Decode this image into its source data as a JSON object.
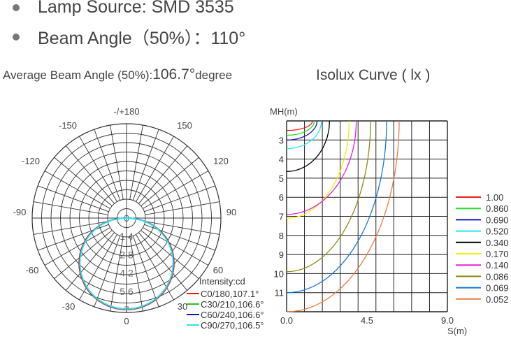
{
  "header": {
    "items": [
      {
        "text": "Lamp Source: SMD 3535"
      },
      {
        "text": "Beam Angle（50%）：110°"
      }
    ],
    "avg_label": "Average Beam Angle (50%):",
    "avg_value": "106.7°",
    "avg_unit": "degree",
    "isolux_title": "Isolux Curve ( lx )"
  },
  "chart_data": [
    {
      "type": "polar",
      "angle_labels": {
        "top": "-/+180",
        "150": "150",
        "-150": "-150",
        "120": "120",
        "-120": "-120",
        "90": "90",
        "-90": "-90",
        "60": "60",
        "-60": "-60",
        "30": "30",
        "-30": "-30",
        "bottom": "0"
      },
      "radial_ticks": [
        "0",
        "1.4",
        "2.8",
        "4.2",
        "5.6",
        "7"
      ],
      "radial_max": 7,
      "intensity_label": "Intensity:cd",
      "series": [
        {
          "name": "C0/180,107.1°",
          "color": "#e8201a",
          "peak": 7.0,
          "exponent": 0.9
        },
        {
          "name": "C30/210,106.6°",
          "color": "#22c322",
          "peak": 6.95,
          "exponent": 0.92
        },
        {
          "name": "C60/240,106.6°",
          "color": "#1010c0",
          "peak": 6.95,
          "exponent": 0.92
        },
        {
          "name": "C90/270,106.5°",
          "color": "#22e8f0",
          "peak": 6.95,
          "exponent": 0.93
        }
      ]
    },
    {
      "type": "isolux",
      "ylabel": "MH(m)",
      "xlabel": "S(m)",
      "x_ticks": [
        "0.0",
        "4.5",
        "9.0"
      ],
      "y_ticks": [
        "3",
        "4",
        "5",
        "6",
        "7",
        "8",
        "9",
        "10",
        "11"
      ],
      "xlim": [
        0,
        9
      ],
      "ylim": [
        2,
        12
      ],
      "curves": [
        {
          "label": "1.00",
          "color": "#e8201a",
          "h_top": 2.0,
          "h_bot": 2.5,
          "s_max": 1.45
        },
        {
          "label": "0.860",
          "color": "#22e022",
          "h_top": 2.0,
          "h_bot": 2.75,
          "s_max": 1.55
        },
        {
          "label": "0.690",
          "color": "#1414c8",
          "h_top": 2.0,
          "h_bot": 3.0,
          "s_max": 1.7
        },
        {
          "label": "0.520",
          "color": "#22e8f0",
          "h_top": 2.0,
          "h_bot": 3.45,
          "s_max": 1.95
        },
        {
          "label": "0.340",
          "color": "#000000",
          "h_top": 2.0,
          "h_bot": 4.65,
          "s_max": 2.4
        },
        {
          "label": "0.170",
          "color": "#f0f000",
          "h_top": 2.0,
          "h_bot": 7.1,
          "s_max": 3.5
        },
        {
          "label": "0.140",
          "color": "#e020e0",
          "h_top": 2.0,
          "h_bot": 6.9,
          "s_max": 3.9
        },
        {
          "label": "0.086",
          "color": "#8c8c14",
          "h_top": 2.0,
          "h_bot": 9.9,
          "s_max": 4.7
        },
        {
          "label": "0.069",
          "color": "#1478d8",
          "h_top": 2.0,
          "h_bot": 11.0,
          "s_max": 5.6
        },
        {
          "label": "0.052",
          "color": "#f07a3c",
          "h_top": 2.0,
          "h_bot": 12.0,
          "s_max": 6.3
        }
      ]
    }
  ]
}
